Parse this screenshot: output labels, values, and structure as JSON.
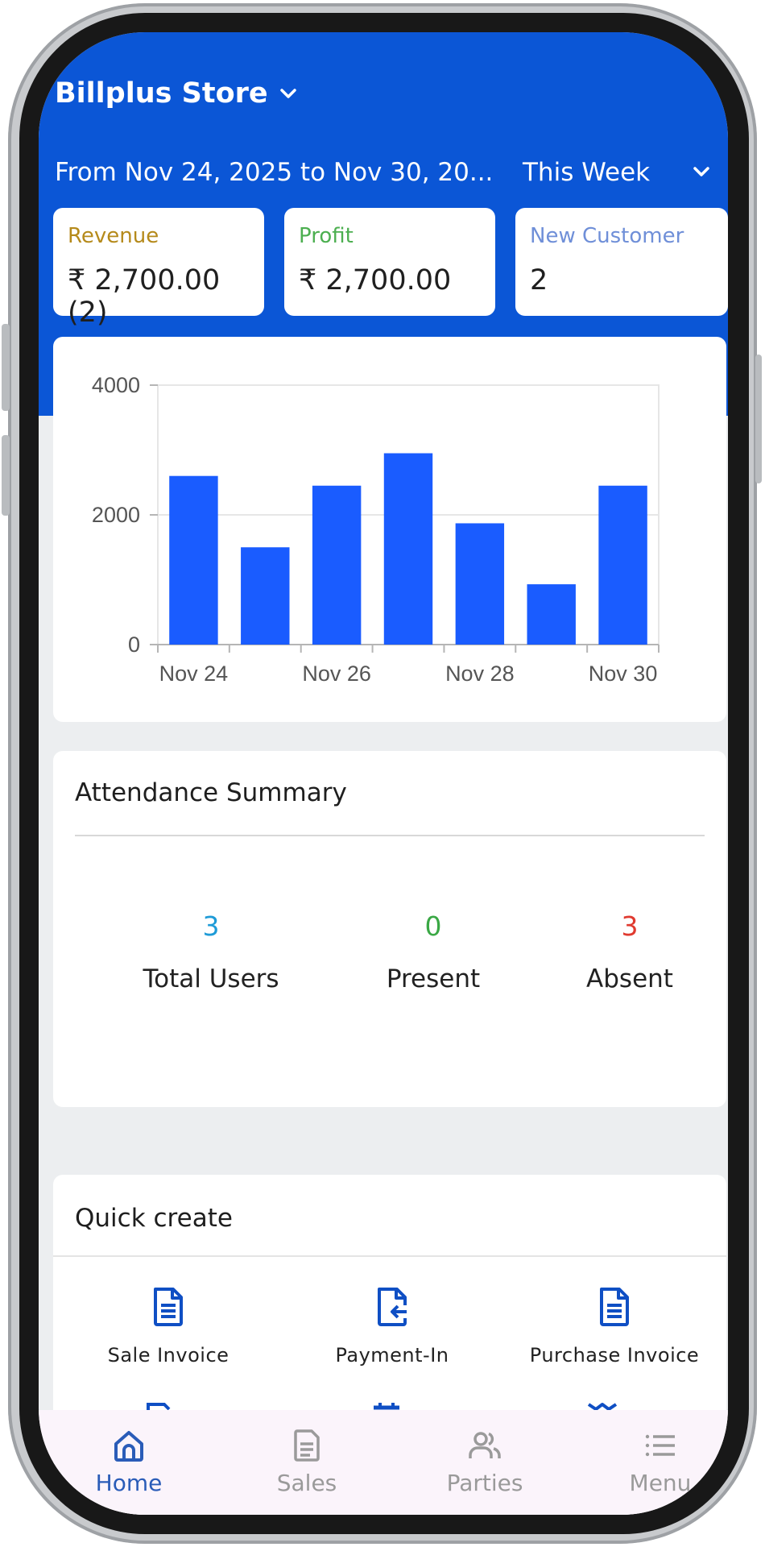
{
  "header": {
    "store_name": "Billplus Store",
    "date_range": "From Nov 24, 2025 to Nov 30, 20...",
    "period": "This Week"
  },
  "stats": [
    {
      "label": "Revenue",
      "value": "₹ 2,700.00 (2)",
      "label_color": "#b58a1b"
    },
    {
      "label": "Profit",
      "value": "₹ 2,700.00",
      "label_color": "#4caf50"
    },
    {
      "label": "New Customer",
      "value": "2",
      "label_color": "#6f8fd8"
    }
  ],
  "chart_data": {
    "type": "bar",
    "categories": [
      "Nov 24",
      "Nov 25",
      "Nov 26",
      "Nov 27",
      "Nov 28",
      "Nov 29",
      "Nov 30"
    ],
    "values": [
      2600,
      1500,
      2450,
      2950,
      1870,
      930,
      2450
    ],
    "x_tick_labels": [
      "Nov 24",
      "Nov 26",
      "Nov 28",
      "Nov 30"
    ],
    "y_ticks": [
      0,
      2000,
      4000
    ],
    "ylim": [
      0,
      4000
    ],
    "bar_color": "#1a5cff",
    "grid": true
  },
  "attendance": {
    "title": "Attendance Summary",
    "items": [
      {
        "value": "3",
        "label": "Total Users",
        "color": "#1e9bd7"
      },
      {
        "value": "0",
        "label": "Present",
        "color": "#3aa845"
      },
      {
        "value": "3",
        "label": "Absent",
        "color": "#e03a2f"
      }
    ]
  },
  "quick_create": {
    "title": "Quick create",
    "items": [
      {
        "label": "Sale Invoice",
        "icon": "invoice-icon"
      },
      {
        "label": "Payment-In",
        "icon": "payment-in-icon"
      },
      {
        "label": "Purchase Invoice",
        "icon": "invoice-icon"
      }
    ]
  },
  "nav": [
    {
      "label": "Home",
      "icon": "home-icon",
      "active": true
    },
    {
      "label": "Sales",
      "icon": "document-icon",
      "active": false
    },
    {
      "label": "Parties",
      "icon": "people-icon",
      "active": false
    },
    {
      "label": "Menu",
      "icon": "menu-icon",
      "active": false
    }
  ],
  "colors": {
    "brand_blue": "#0b56d6",
    "icon_blue": "#0f4fc4",
    "nav_active": "#2a5cb8",
    "nav_inactive": "#9a9a9a"
  }
}
